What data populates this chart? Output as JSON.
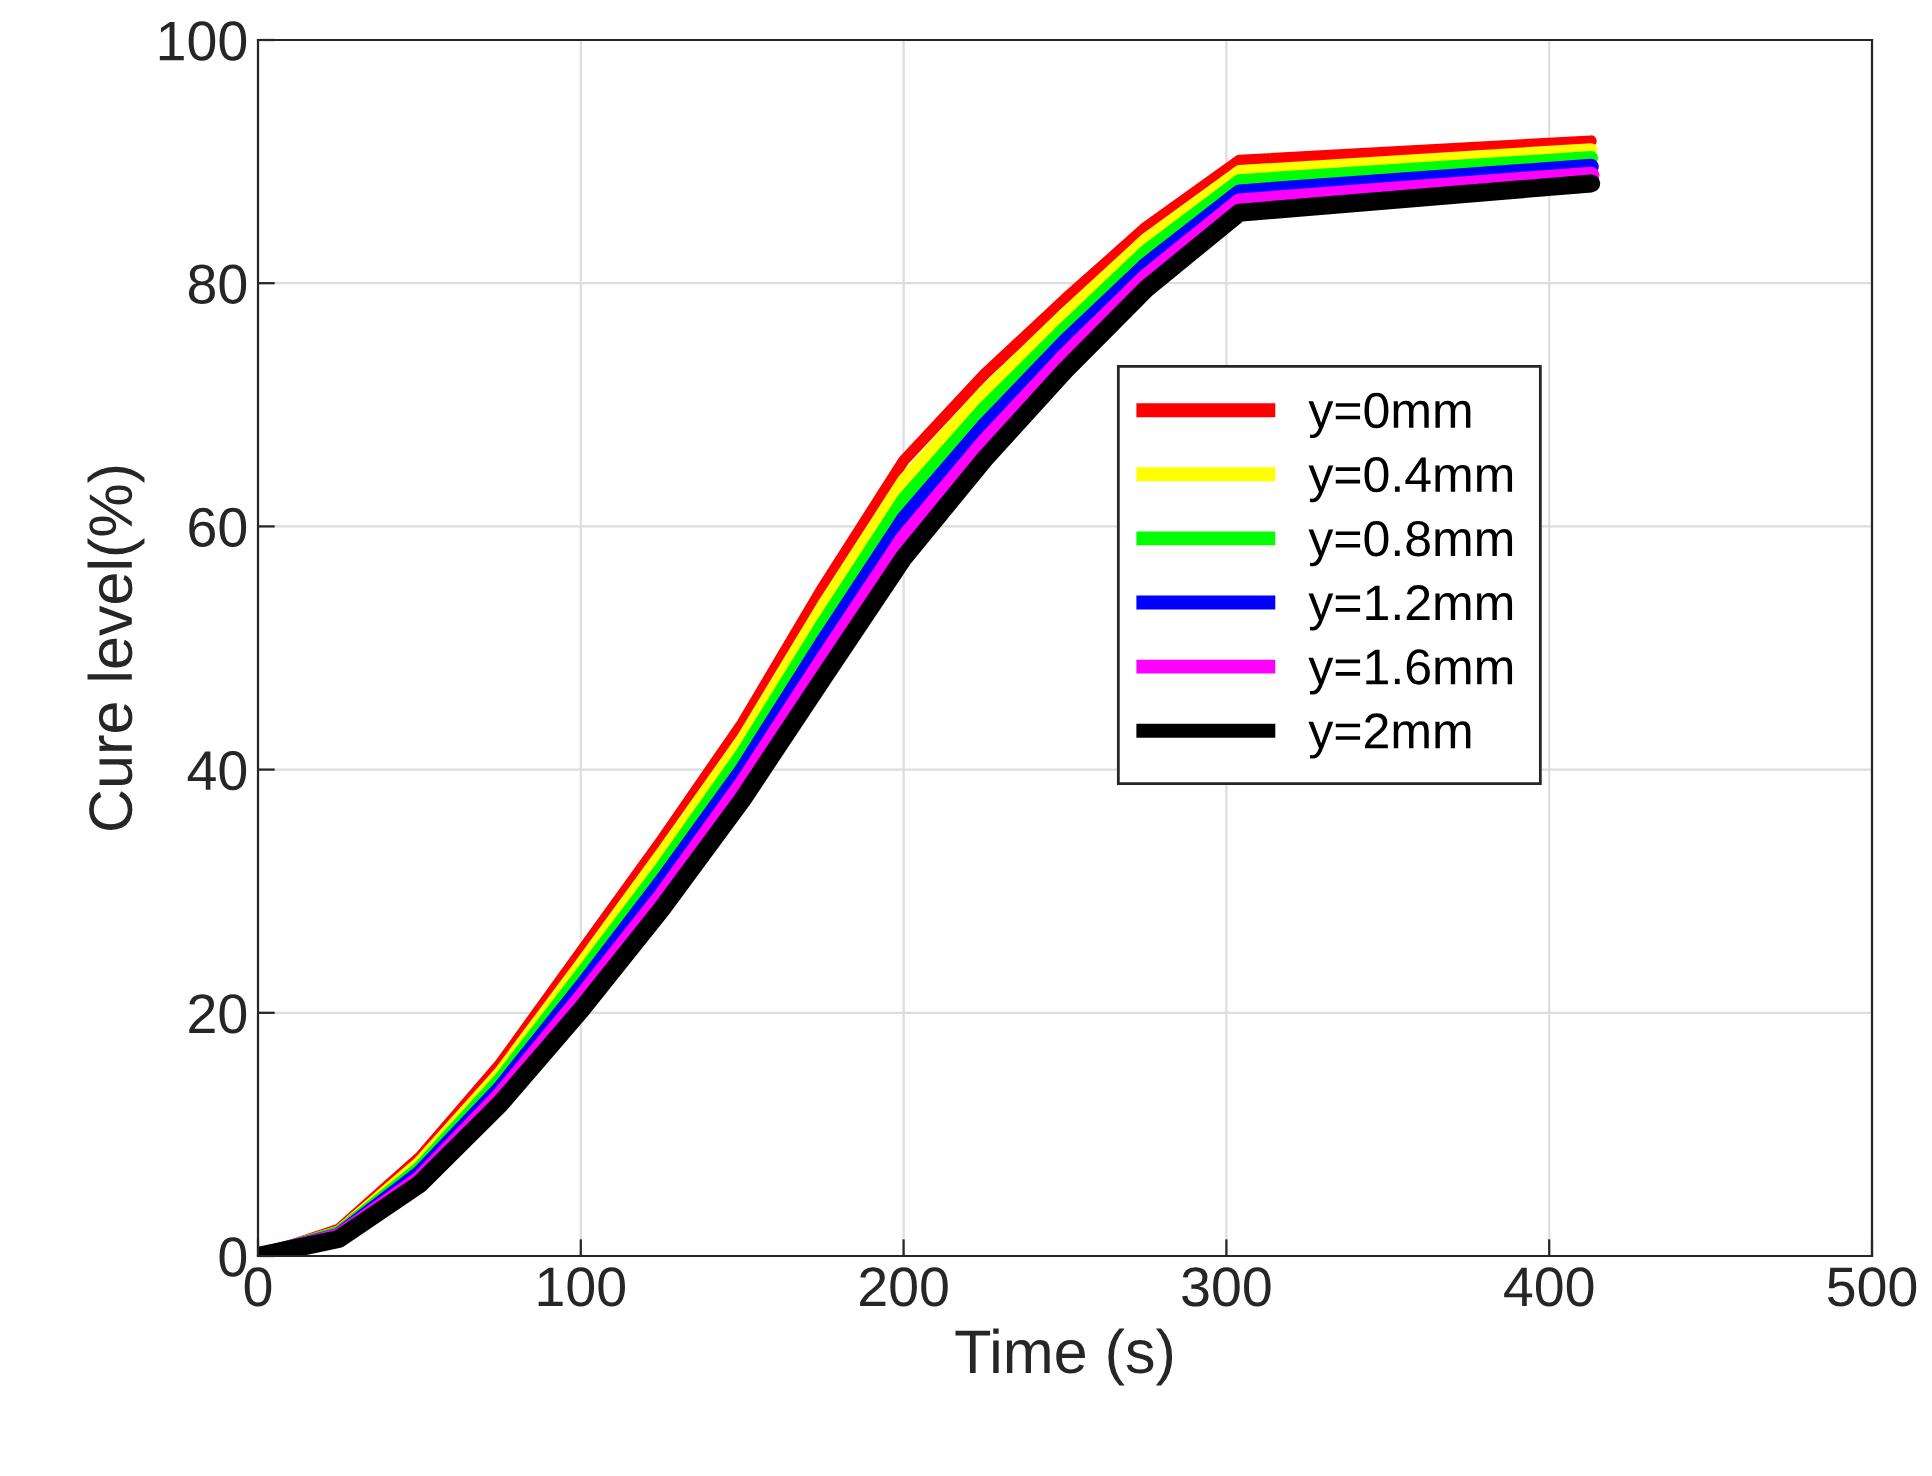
{
  "chart_data": {
    "type": "line",
    "xlabel": "Time (s)",
    "ylabel": "Cure level(%)",
    "x": [
      0,
      25,
      50,
      75,
      100,
      125,
      150,
      175,
      200,
      225,
      250,
      275,
      304,
      413
    ],
    "series": [
      {
        "name": "y=0mm",
        "color": "#ff0000",
        "values": [
          0,
          2.2,
          8.1,
          15.8,
          25.0,
          34.2,
          43.8,
          55.0,
          65.4,
          72.5,
          78.7,
          84.6,
          90.1,
          91.7
        ]
      },
      {
        "name": "y=0.4mm",
        "color": "#ffff00",
        "values": [
          0,
          2.0,
          7.7,
          15.1,
          24.0,
          33.1,
          42.5,
          53.5,
          63.8,
          71.1,
          77.5,
          83.6,
          89.2,
          91.0
        ]
      },
      {
        "name": "y=0.8mm",
        "color": "#00ff00",
        "values": [
          0,
          1.9,
          7.2,
          14.5,
          23.1,
          31.9,
          41.3,
          52.0,
          62.2,
          69.7,
          76.3,
          82.6,
          88.4,
          90.3
        ]
      },
      {
        "name": "y=1.2mm",
        "color": "#0000ff",
        "values": [
          0,
          1.7,
          6.8,
          13.8,
          22.1,
          30.8,
          40.0,
          50.5,
          60.6,
          68.3,
          75.2,
          81.5,
          87.5,
          89.6
        ]
      },
      {
        "name": "y=1.6mm",
        "color": "#ff00ff",
        "values": [
          0,
          1.6,
          6.3,
          13.2,
          21.2,
          29.6,
          38.8,
          49.0,
          59.0,
          66.9,
          74.0,
          80.5,
          86.7,
          88.9
        ]
      },
      {
        "name": "y=2mm",
        "color": "#000000",
        "values": [
          0,
          1.4,
          5.9,
          12.5,
          20.2,
          28.5,
          37.5,
          47.5,
          57.4,
          65.5,
          72.8,
          79.5,
          85.8,
          88.2
        ]
      }
    ],
    "xlim": [
      0,
      500
    ],
    "ylim": [
      0,
      100
    ],
    "xticks": [
      0,
      100,
      200,
      300,
      400,
      500
    ],
    "yticks": [
      0,
      20,
      40,
      60,
      80,
      100
    ],
    "grid": true,
    "legend": "right"
  }
}
